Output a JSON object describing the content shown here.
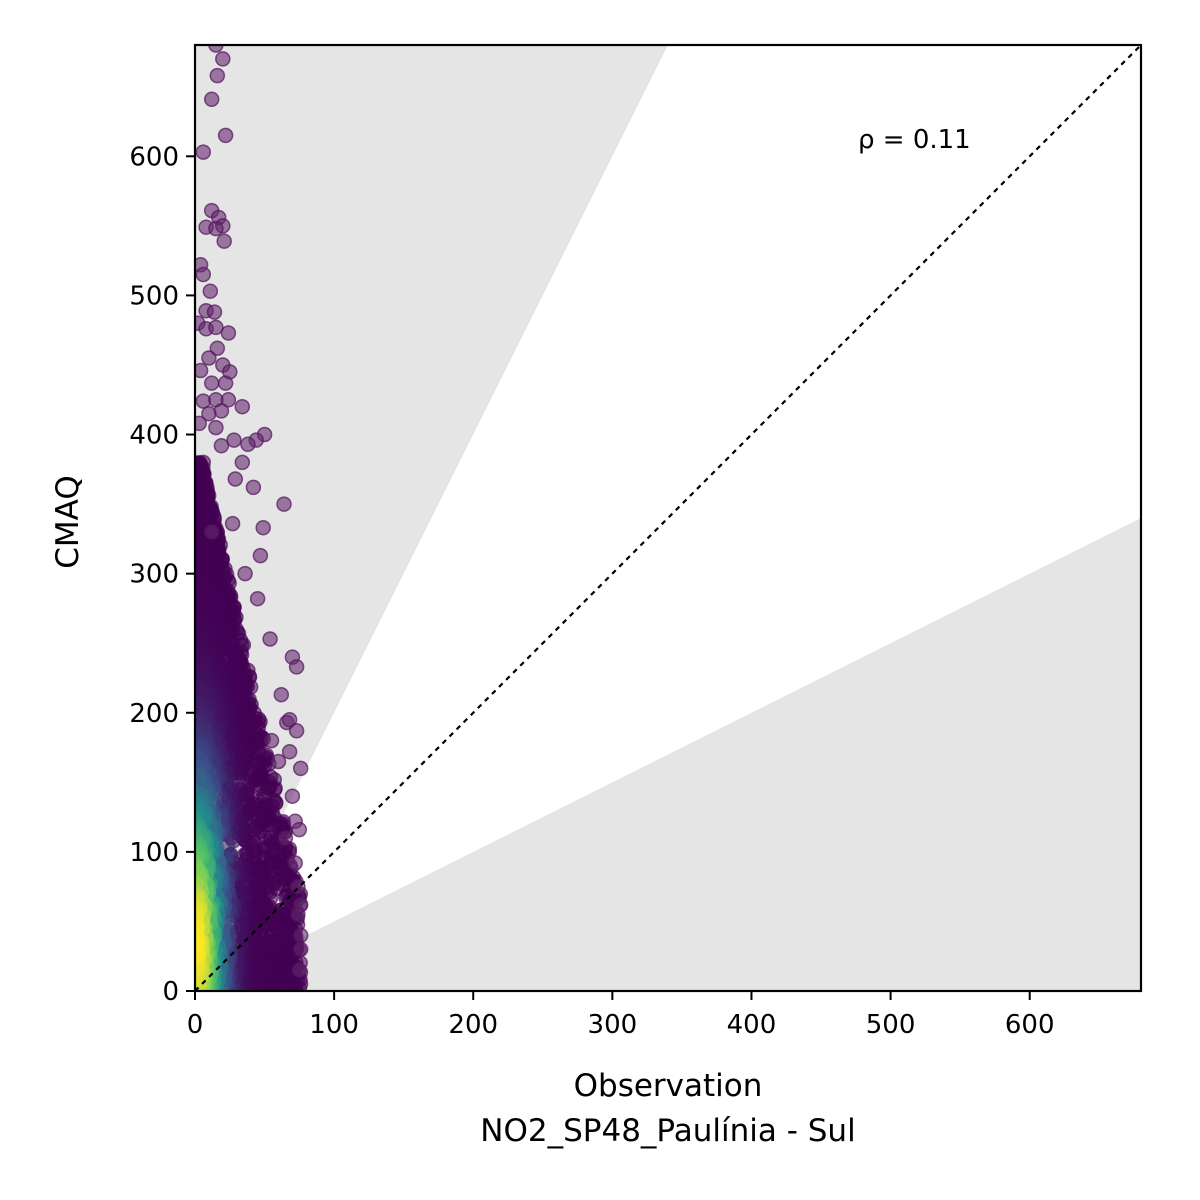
{
  "chart_data": {
    "type": "scatter",
    "title": "",
    "xlabel": "Observation",
    "xlabel_sub": "NO2_SP48_Paulínia - Sul",
    "ylabel": "CMAQ",
    "xlim": [
      0,
      680
    ],
    "ylim": [
      0,
      680
    ],
    "xticks": [
      0,
      100,
      200,
      300,
      400,
      500,
      600
    ],
    "yticks": [
      0,
      100,
      200,
      300,
      400,
      500,
      600
    ],
    "annotation": "ρ = 0.11",
    "reference_line": "1:1",
    "shaded_regions": [
      {
        "name": "above factor-2",
        "lower_slope": 2
      },
      {
        "name": "below factor-0.5",
        "upper_slope": 0.5
      }
    ],
    "colormap": "viridis",
    "colors": {
      "shade": "#e5e5e5",
      "high_density": "#fde725",
      "mid_density": "#21918c",
      "low_density": "#440154",
      "reference_line": "#000000"
    },
    "grid": false,
    "points": [
      [
        15,
        680
      ],
      [
        20,
        670
      ],
      [
        16,
        658
      ],
      [
        12,
        641
      ],
      [
        22,
        615
      ],
      [
        6,
        603
      ],
      [
        12,
        561
      ],
      [
        17,
        556
      ],
      [
        20,
        550
      ],
      [
        8,
        549
      ],
      [
        15,
        548
      ],
      [
        21,
        539
      ],
      [
        4,
        522
      ],
      [
        6,
        515
      ],
      [
        11,
        503
      ],
      [
        8,
        489
      ],
      [
        14,
        488
      ],
      [
        2,
        480
      ],
      [
        8,
        476
      ],
      [
        15,
        477
      ],
      [
        24,
        473
      ],
      [
        16,
        462
      ],
      [
        10,
        455
      ],
      [
        20,
        450
      ],
      [
        4,
        446
      ],
      [
        25,
        445
      ],
      [
        12,
        437
      ],
      [
        22,
        437
      ],
      [
        6,
        424
      ],
      [
        15,
        425
      ],
      [
        24,
        425
      ],
      [
        34,
        420
      ],
      [
        10,
        415
      ],
      [
        19,
        417
      ],
      [
        3,
        408
      ],
      [
        15,
        405
      ],
      [
        50,
        400
      ],
      [
        44,
        396
      ],
      [
        28,
        396
      ],
      [
        19,
        392
      ],
      [
        38,
        393
      ],
      [
        34,
        380
      ],
      [
        42,
        362
      ],
      [
        29,
        368
      ],
      [
        64,
        350
      ],
      [
        27,
        336
      ],
      [
        49,
        333
      ],
      [
        12,
        330
      ],
      [
        47,
        313
      ],
      [
        36,
        300
      ],
      [
        45,
        282
      ],
      [
        54,
        253
      ],
      [
        70,
        240
      ],
      [
        73,
        233
      ],
      [
        62,
        213
      ],
      [
        66,
        193
      ],
      [
        68,
        195
      ],
      [
        73,
        187
      ],
      [
        76,
        160
      ],
      [
        68,
        172
      ],
      [
        55,
        180
      ],
      [
        60,
        165
      ],
      [
        70,
        140
      ],
      [
        72,
        122
      ],
      [
        75,
        116
      ],
      [
        65,
        110
      ],
      [
        72,
        92
      ],
      [
        74,
        75
      ],
      [
        76,
        62
      ],
      [
        74,
        55
      ],
      [
        76,
        40
      ],
      [
        76,
        30
      ],
      [
        75,
        15
      ]
    ],
    "density_cloud": [
      {
        "x_max": [
          30,
          40,
          50,
          58,
          65,
          70,
          74,
          76,
          76,
          76
        ],
        "y": [
          380,
          330,
          290,
          250,
          210,
          170,
          130,
          90,
          50,
          10
        ]
      }
    ]
  }
}
